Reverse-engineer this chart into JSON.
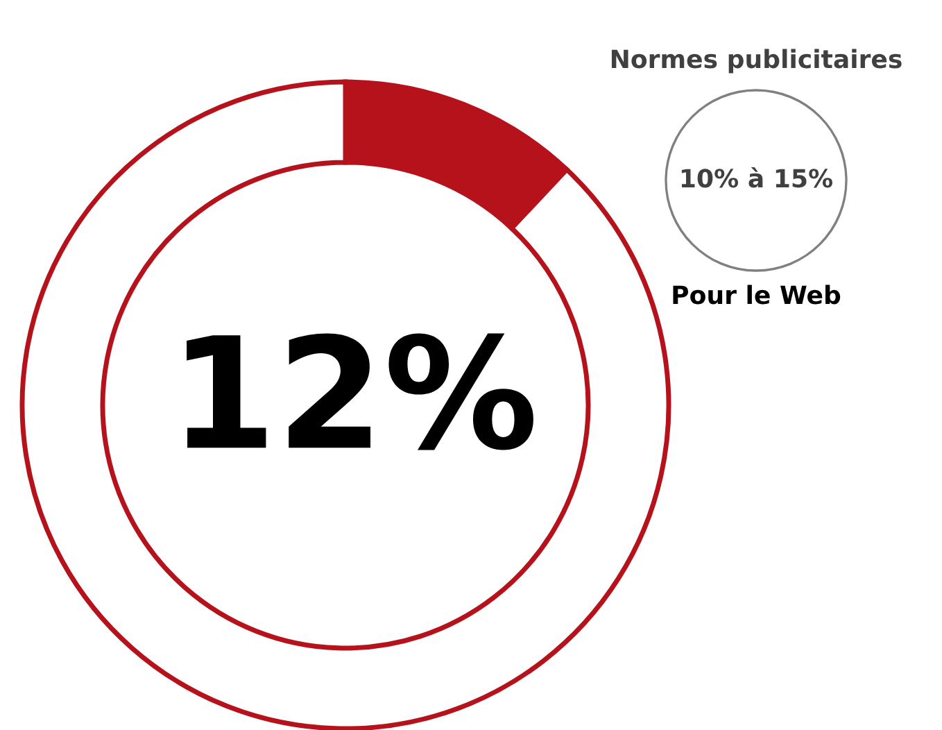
{
  "chart_data": {
    "type": "donut",
    "categories": [
      null,
      null
    ],
    "values": [
      12,
      88
    ],
    "colors": [
      "#b5121b",
      "#ffffff"
    ],
    "value_labels": [
      "12%",
      null
    ],
    "annotations": [
      "Normes publicitaires",
      "10% à 15%",
      "Pour le Web"
    ]
  }
}
